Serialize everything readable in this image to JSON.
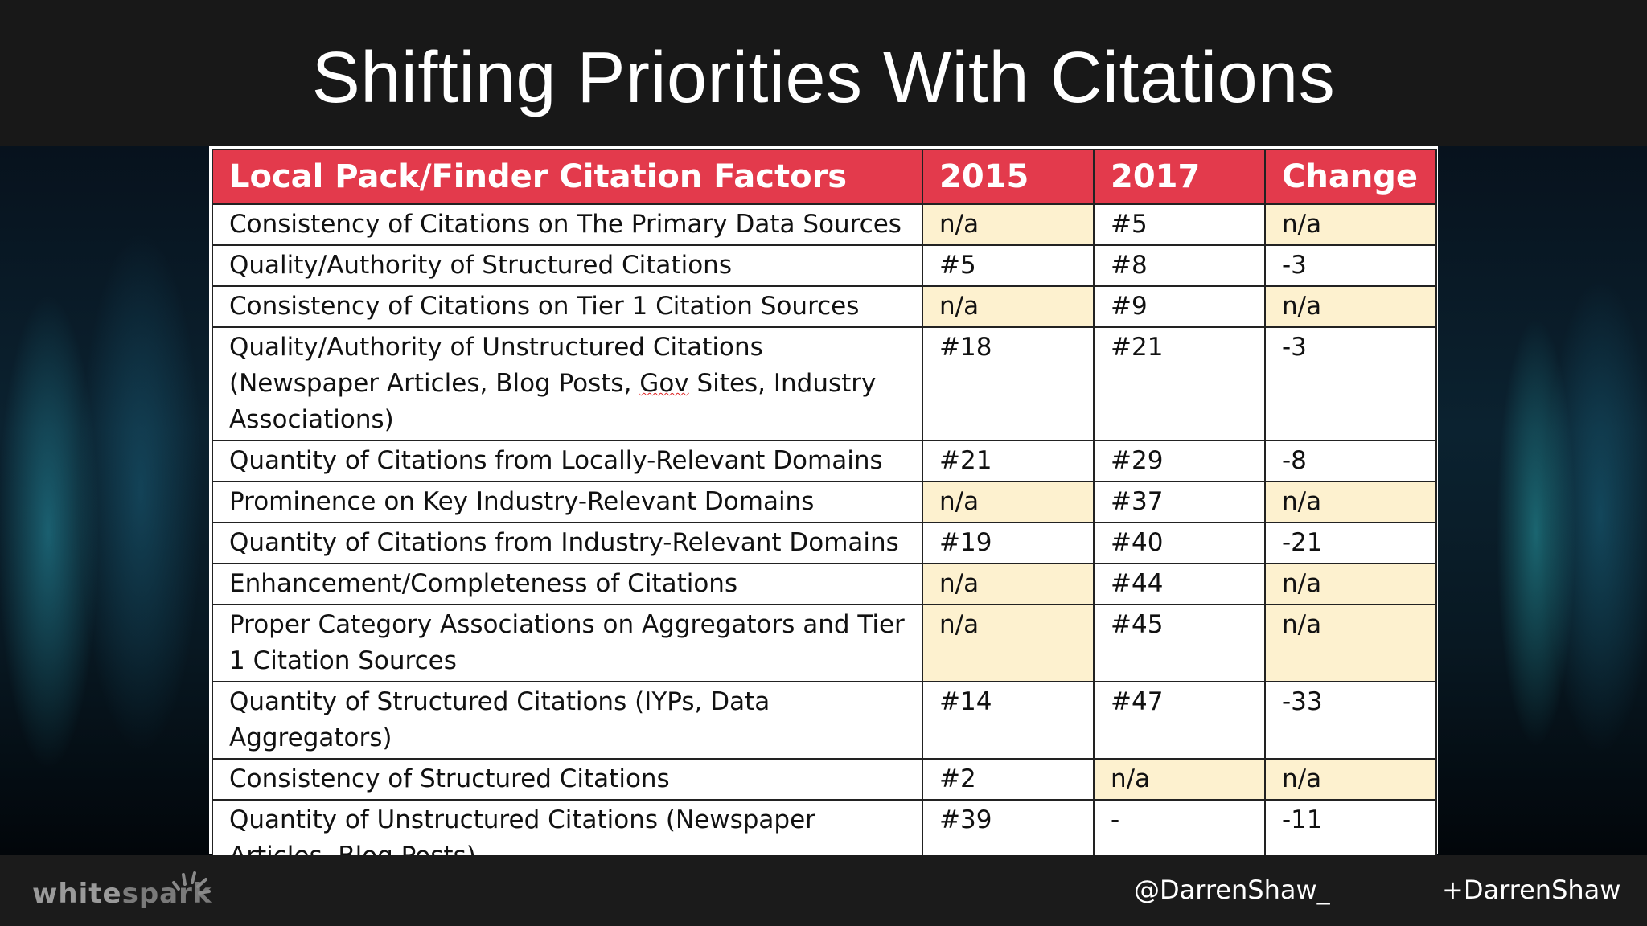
{
  "slide": {
    "title": "Shifting Priorities With Citations"
  },
  "table": {
    "headers": [
      "Local Pack/Finder Citation Factors",
      "2015",
      "2017",
      "Change"
    ],
    "rows": [
      {
        "factor": "Consistency of Citations on The Primary Data Sources",
        "y2015": "n/a",
        "y2017": "#5",
        "change": "n/a"
      },
      {
        "factor": "Quality/Authority of Structured Citations",
        "y2015": "#5",
        "y2017": "#8",
        "change": "-3"
      },
      {
        "factor": "Consistency of Citations on Tier 1 Citation Sources",
        "y2015": "n/a",
        "y2017": "#9",
        "change": "n/a"
      },
      {
        "factor_a": "Quality/Authority of Unstructured Citations (Newspaper Articles, Blog Posts, ",
        "factor_b": "Gov",
        "factor_c": " Sites, Industry Associations)",
        "y2015": "#18",
        "y2017": "#21",
        "change": "-3"
      },
      {
        "factor": "Quantity of Citations from Locally-Relevant Domains",
        "y2015": "#21",
        "y2017": "#29",
        "change": "-8"
      },
      {
        "factor": "Prominence on Key Industry-Relevant Domains",
        "y2015": "n/a",
        "y2017": "#37",
        "change": "n/a"
      },
      {
        "factor": "Quantity of Citations from Industry-Relevant Domains",
        "y2015": "#19",
        "y2017": "#40",
        "change": "-21"
      },
      {
        "factor": "Enhancement/Completeness of Citations",
        "y2015": "n/a",
        "y2017": "#44",
        "change": "n/a"
      },
      {
        "factor": "Proper Category Associations on Aggregators and Tier 1 Citation Sources",
        "y2015": "n/a",
        "y2017": "#45",
        "change": "n/a"
      },
      {
        "factor": "Quantity of Structured Citations (IYPs, Data Aggregators)",
        "y2015": "#14",
        "y2017": "#47",
        "change": "-33"
      },
      {
        "factor": "Consistency of Structured Citations",
        "y2015": "#2",
        "y2017": "n/a",
        "change": "n/a"
      },
      {
        "factor": "Quantity of Unstructured Citations (Newspaper Articles, Blog Posts)",
        "y2015": "#39",
        "y2017": "-",
        "change": "-11"
      }
    ]
  },
  "footer": {
    "logo_white": "white",
    "logo_spark": "spark",
    "twitter": "@DarrenShaw_",
    "gplus": "+DarrenShaw"
  },
  "colors": {
    "header_red": "#e33a4c",
    "highlight_cream": "#fdf1cf"
  }
}
